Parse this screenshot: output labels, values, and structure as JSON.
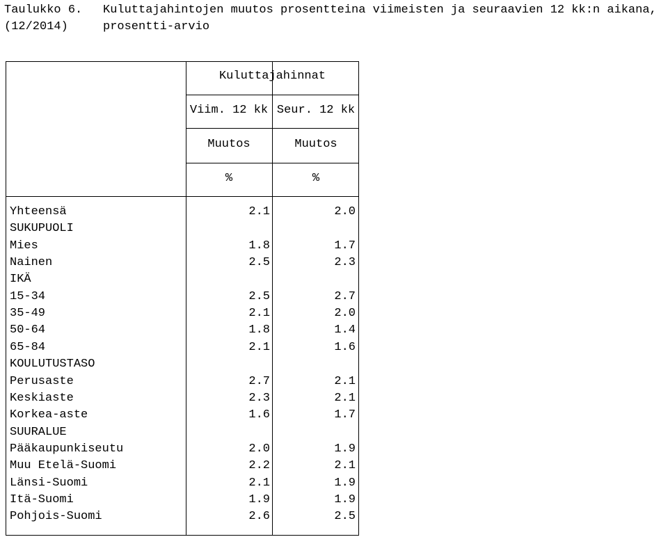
{
  "title": {
    "label": "Taulukko 6.",
    "date": "(12/2014)",
    "main": "Kuluttajahintojen muutos prosentteina viimeisten ja seuraavien 12 kk:n aikana,",
    "sub": "prosentti-arvio"
  },
  "table": {
    "group_header": "Kuluttajahinnat",
    "columns": [
      {
        "period": "Viim. 12 kk",
        "measure": "Muutos",
        "unit": "%"
      },
      {
        "period": "Seur. 12 kk",
        "measure": "Muutos",
        "unit": "%"
      }
    ],
    "rows": [
      {
        "label": "Yhteensä",
        "v1": "2.1",
        "v2": "2.0"
      },
      {
        "label": "SUKUPUOLI",
        "v1": "",
        "v2": ""
      },
      {
        "label": "Mies",
        "v1": "1.8",
        "v2": "1.7"
      },
      {
        "label": "Nainen",
        "v1": "2.5",
        "v2": "2.3"
      },
      {
        "label": "IKÄ",
        "v1": "",
        "v2": ""
      },
      {
        "label": "15-34",
        "v1": "2.5",
        "v2": "2.7"
      },
      {
        "label": "35-49",
        "v1": "2.1",
        "v2": "2.0"
      },
      {
        "label": "50-64",
        "v1": "1.8",
        "v2": "1.4"
      },
      {
        "label": "65-84",
        "v1": "2.1",
        "v2": "1.6"
      },
      {
        "label": "KOULUTUSTASO",
        "v1": "",
        "v2": ""
      },
      {
        "label": "Perusaste",
        "v1": "2.7",
        "v2": "2.1"
      },
      {
        "label": "Keskiaste",
        "v1": "2.3",
        "v2": "2.1"
      },
      {
        "label": "Korkea-aste",
        "v1": "1.6",
        "v2": "1.7"
      },
      {
        "label": "SUURALUE",
        "v1": "",
        "v2": ""
      },
      {
        "label": "Pääkaupunkiseutu",
        "v1": "2.0",
        "v2": "1.9"
      },
      {
        "label": "Muu Etelä-Suomi",
        "v1": "2.2",
        "v2": "2.1"
      },
      {
        "label": "Länsi-Suomi",
        "v1": "2.1",
        "v2": "1.9"
      },
      {
        "label": "Itä-Suomi",
        "v1": "1.9",
        "v2": "1.9"
      },
      {
        "label": "Pohjois-Suomi",
        "v1": "2.6",
        "v2": "2.5"
      }
    ]
  }
}
